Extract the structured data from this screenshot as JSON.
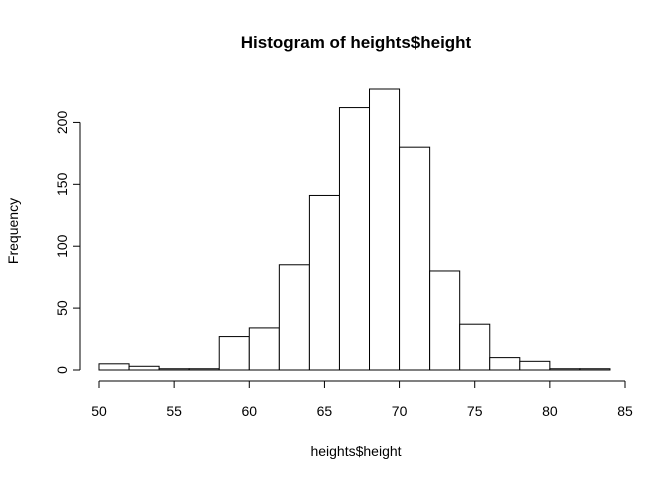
{
  "chart_data": {
    "type": "bar",
    "title": "Histogram of heights$height",
    "xlabel": "heights$height",
    "ylabel": "Frequency",
    "bin_edges": [
      50,
      52,
      54,
      56,
      58,
      60,
      62,
      64,
      66,
      68,
      70,
      72,
      74,
      76,
      78,
      80,
      82,
      84
    ],
    "values": [
      5,
      3,
      1,
      1,
      27,
      34,
      85,
      141,
      212,
      227,
      180,
      80,
      37,
      10,
      7,
      1,
      1
    ],
    "xlim": [
      50,
      85
    ],
    "ylim": [
      0,
      227
    ],
    "x_ticks": [
      50,
      55,
      60,
      65,
      70,
      75,
      80,
      85
    ],
    "y_ticks": [
      0,
      50,
      100,
      150,
      200
    ],
    "grid": false,
    "legend": "none"
  }
}
